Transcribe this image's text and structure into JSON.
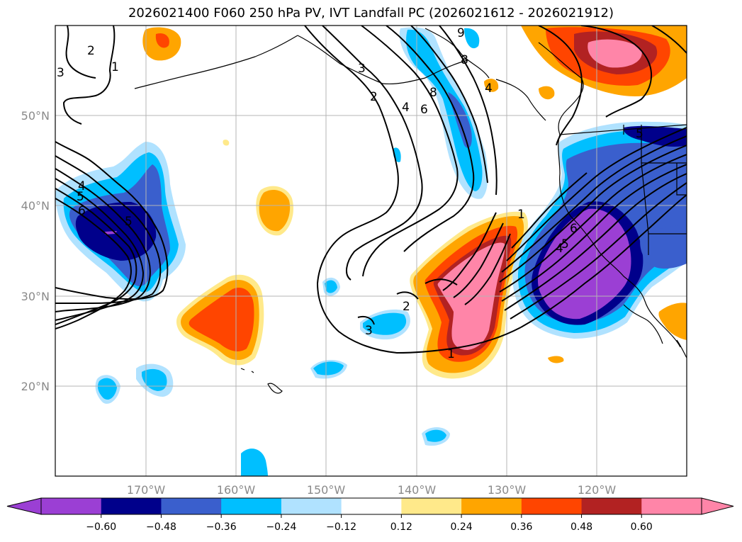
{
  "title": "2026021400 F060 250 hPa PV, IVT Landfall PC (2026021612 - 2026021912)",
  "map": {
    "lon_range": [
      -180,
      -110
    ],
    "lat_range": [
      10,
      60
    ],
    "lon_ticks": [
      -170,
      -160,
      -150,
      -140,
      -130,
      -120
    ],
    "lon_tick_labels": [
      "170°W",
      "160°W",
      "150°W",
      "140°W",
      "130°W",
      "120°W"
    ],
    "lat_ticks": [
      20,
      30,
      40,
      50
    ],
    "lat_tick_labels": [
      "20°N",
      "30°N",
      "40°N",
      "50°N"
    ],
    "grid": true,
    "contour_labels": [
      "2",
      "1",
      "3",
      "4",
      "5",
      "6",
      "3",
      "2",
      "4",
      "6",
      "8",
      "9",
      "8",
      "4",
      "5",
      "6",
      "2",
      "3",
      "1",
      "1",
      "4",
      "5",
      "5"
    ]
  },
  "colorbar": {
    "tick_labels": [
      "−0.60",
      "−0.48",
      "−0.36",
      "−0.24",
      "−0.12",
      "0.12",
      "0.24",
      "0.36",
      "0.48",
      "0.60"
    ],
    "colors": [
      "#9b3fd4",
      "#00008b",
      "#3a5fcd",
      "#00bfff",
      "#b0e2ff",
      "#ffffff",
      "#ffe98a",
      "#ffa500",
      "#ff4500",
      "#b22222",
      "#ff85a8",
      "#ff85a8"
    ],
    "extend": "both"
  }
}
